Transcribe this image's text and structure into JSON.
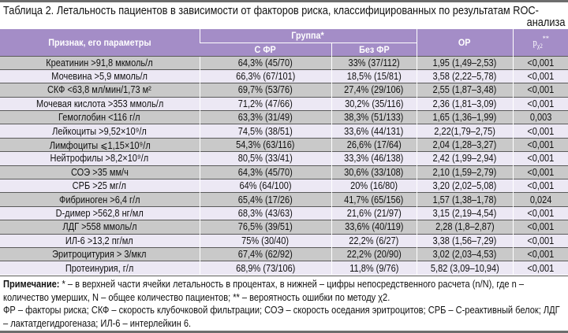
{
  "title": "Таблица 2. Летальность пациентов в зависимости от факторов риска, классифицированных по результатам ROC-",
  "title_cont": "анализа",
  "header": {
    "param": "Признак, его параметры",
    "group": "Группа*",
    "with_rf": "С ФР",
    "without_rf": "Без ФР",
    "or": "ОР",
    "p": "p",
    "p_sub": "χ2",
    "p_sup": "**"
  },
  "rows": [
    {
      "param": "Креатинин >91,8 мкмоль/л",
      "with": "64,3% (45/70)",
      "without": "33% (37/112)",
      "or": "1,95 (1,49–2,53)",
      "p": "<0,001"
    },
    {
      "param": "Мочевина >5,9 ммоль/л",
      "with": "66,3% (67/101)",
      "without": "18,5% (15/81)",
      "or": "3,58 (2,22–5,78)",
      "p": "<0,001"
    },
    {
      "param": "СКФ <63,8 мл/мин/1,73 м²",
      "with": "69,7% (53/76)",
      "without": "27,4% (29/106)",
      "or": "2,55 (1,87–3,48)",
      "p": "<0,001"
    },
    {
      "param": "Мочевая кислота >353 ммоль/л",
      "with": "71,2% (47/66)",
      "without": "30,2% (35/116)",
      "or": "2,36 (1,81–3,09)",
      "p": "<0,001"
    },
    {
      "param": "Гемоглобин <116 г/л",
      "with": "63,3% (31/49)",
      "without": "38,3% (51/133)",
      "or": "1,65 (1,36–1,99)",
      "p": "0,003"
    },
    {
      "param": "Лейкоциты >9,52×10⁹/л",
      "with": "74,5% (38/51)",
      "without": "33,6% (44/131)",
      "or": "2,22(1,79–2,75)",
      "p": "<0,001"
    },
    {
      "param": "Лимфоциты ⩽1,15×10⁹/л",
      "with": "54,3% (63/116)",
      "without": "26,6% (17/64)",
      "or": "2,04 (1,28–3,27)",
      "p": "<0,001"
    },
    {
      "param": "Нейтрофилы >8,2×10⁹/л",
      "with": "80,5% (33/41)",
      "without": "33,3% (46/138)",
      "or": "2,42 (1,99–2,94)",
      "p": "<0,001"
    },
    {
      "param": "СОЭ >35 мм/ч",
      "with": "64,3% (45/70)",
      "without": "30,6% (33/108)",
      "or": "2,10 (1,59–2,79)",
      "p": "<0,001"
    },
    {
      "param": "СРБ >25 мг/л",
      "with": "64% (64/100)",
      "without": "20% (16/80)",
      "or": "3,20 (2,02–5,08)",
      "p": "<0,001"
    },
    {
      "param": "Фибриноген >6,4 г/л",
      "with": "65,4% (17/26)",
      "without": "41,7% (65/156)",
      "or": "1,57 (1,38–1,78)",
      "p": "0,024"
    },
    {
      "param": "D-димер >562,8 нг/мл",
      "with": "68,3% (43/63)",
      "without": "21,6% (21/97)",
      "or": "3,15 (2,19–4,54)",
      "p": "<0,001"
    },
    {
      "param": "ЛДГ >558 ммоль/л",
      "with": "76,5% (39/51)",
      "without": "33,6% (40/119)",
      "or": "2,28 (1,8–2,87)",
      "p": "<0,001"
    },
    {
      "param": "ИЛ-6 >13,2 пг/мл",
      "with": "75% (30/40)",
      "without": "22,2% (6/27)",
      "or": "3,38 (1,56–7,29)",
      "p": "<0,001"
    },
    {
      "param": "Эритроцитурия > 3/мкл",
      "with": "67,4% (62/92)",
      "without": "22,2% (20/90)",
      "or": "3,02 (2,03–4,53)",
      "p": "<0,001"
    },
    {
      "param": "Протеинурия, г/л",
      "with": "68,9% (73/106)",
      "without": "11,8% (9/76)",
      "or": "5,82 (3,09–10,94)",
      "p": "<0,001"
    }
  ],
  "notes": {
    "label": "Примечание:",
    "line1": " * – в верхней части ячейки летальность в процентах, в нижней – цифры непосредственного расчета (n/N), где n – количество умерших, N – общее количество пациентов; ** – вероятность ошибки по методу χ2.",
    "line2": "ФР – факторы риска; СКФ – скорость клубочковой фильтрации; СОЭ – скорость оседания эритроцитов; СРБ – С-реактивный белок; ЛДГ – лактатдегидрогеназа; ИЛ-6 – интерлейкин 6."
  },
  "colors": {
    "header": "#a48dc7",
    "row_grey": "#c9c9c9",
    "row_lavender": "#ece8f4"
  }
}
